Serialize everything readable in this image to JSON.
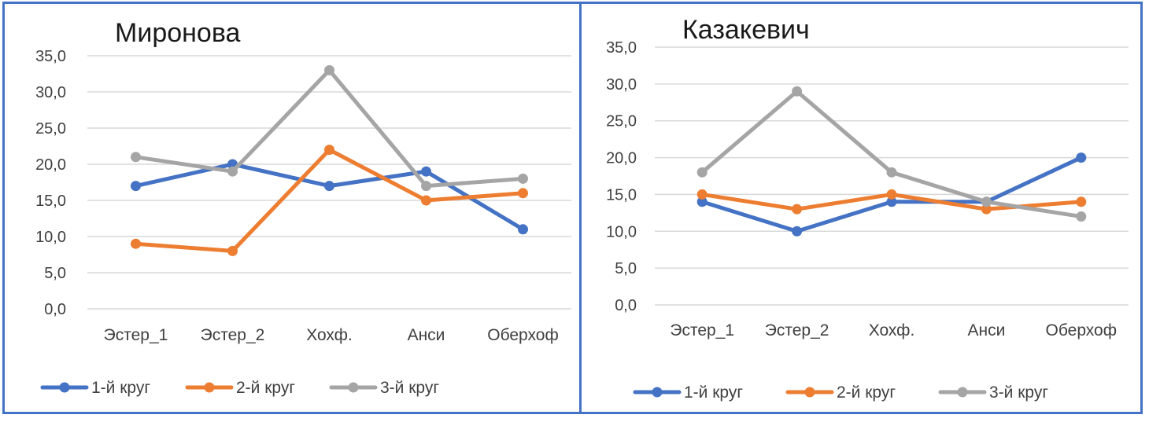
{
  "colors": {
    "series1": "#4472c4",
    "series2": "#ed7d31",
    "series3": "#a5a5a5"
  },
  "chart_data": [
    {
      "type": "line",
      "title": "Миронова",
      "categories": [
        "Эстер_1",
        "Эстер_2",
        "Хохф.",
        "Анси",
        "Оберхоф"
      ],
      "ylim": [
        0,
        35
      ],
      "yticks": [
        "0,0",
        "5,0",
        "10,0",
        "15,0",
        "20,0",
        "25,0",
        "30,0",
        "35,0"
      ],
      "grid": true,
      "legend": "bottom-left",
      "series": [
        {
          "name": "1-й круг",
          "values": [
            17,
            20,
            17,
            19,
            11
          ]
        },
        {
          "name": "2-й круг",
          "values": [
            9,
            8,
            22,
            15,
            16
          ]
        },
        {
          "name": "3-й круг",
          "values": [
            21,
            19,
            33,
            17,
            18
          ]
        }
      ]
    },
    {
      "type": "line",
      "title": "Казакевич",
      "categories": [
        "Эстер_1",
        "Эстер_2",
        "Хохф.",
        "Анси",
        "Оберхоф"
      ],
      "ylim": [
        0,
        35
      ],
      "yticks": [
        "0,0",
        "5,0",
        "10,0",
        "15,0",
        "20,0",
        "25,0",
        "30,0",
        "35,0"
      ],
      "grid": true,
      "legend": "bottom",
      "series": [
        {
          "name": "1-й круг",
          "values": [
            14,
            10,
            14,
            14,
            20
          ]
        },
        {
          "name": "2-й круг",
          "values": [
            15,
            13,
            15,
            13,
            14
          ]
        },
        {
          "name": "3-й круг",
          "values": [
            18,
            29,
            18,
            14,
            12
          ]
        }
      ]
    }
  ]
}
